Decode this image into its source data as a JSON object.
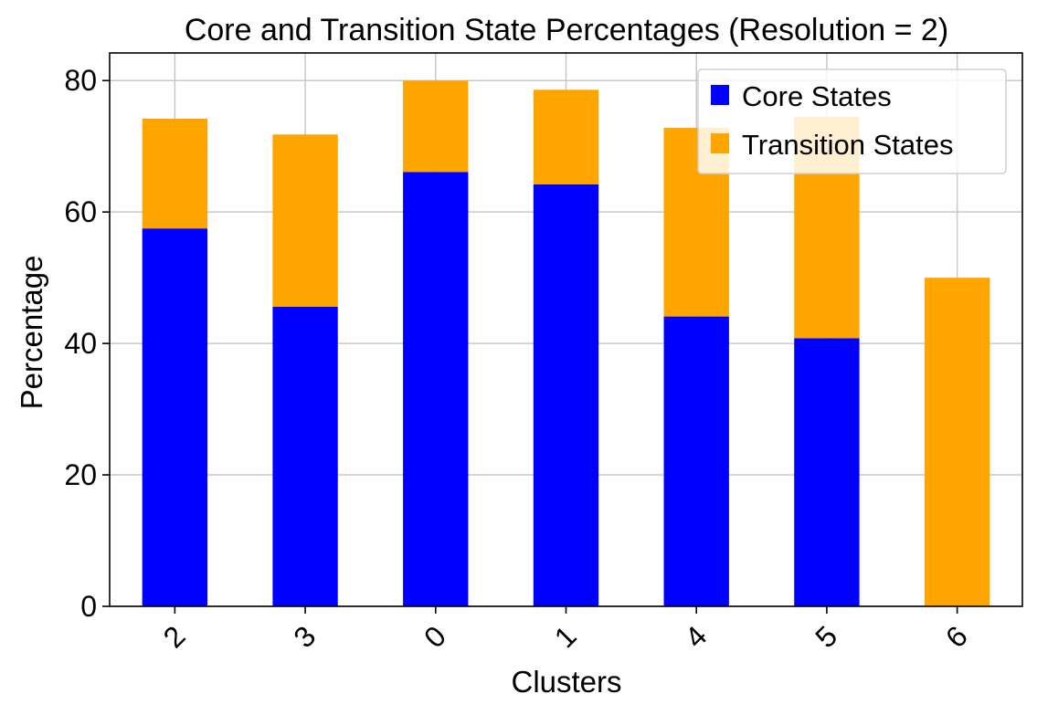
{
  "chart_data": {
    "type": "bar",
    "stacked": true,
    "title": "Core and Transition State Percentages (Resolution = 2)",
    "xlabel": "Clusters",
    "ylabel": "Percentage",
    "categories": [
      "2",
      "3",
      "0",
      "1",
      "4",
      "5",
      "6"
    ],
    "series": [
      {
        "name": "Core States",
        "color": "#0000ff",
        "values": [
          57.5,
          45.6,
          66.1,
          64.2,
          44.1,
          40.8,
          0
        ]
      },
      {
        "name": "Transition States",
        "color": "#ffa500",
        "values": [
          16.7,
          26.2,
          13.9,
          14.4,
          28.7,
          33.7,
          50.0
        ]
      }
    ],
    "ylim": [
      0,
      84.2
    ],
    "yticks": [
      0,
      20,
      40,
      60,
      80
    ],
    "xtick_rotation": 45,
    "grid": true,
    "legend_position": "top-right"
  }
}
